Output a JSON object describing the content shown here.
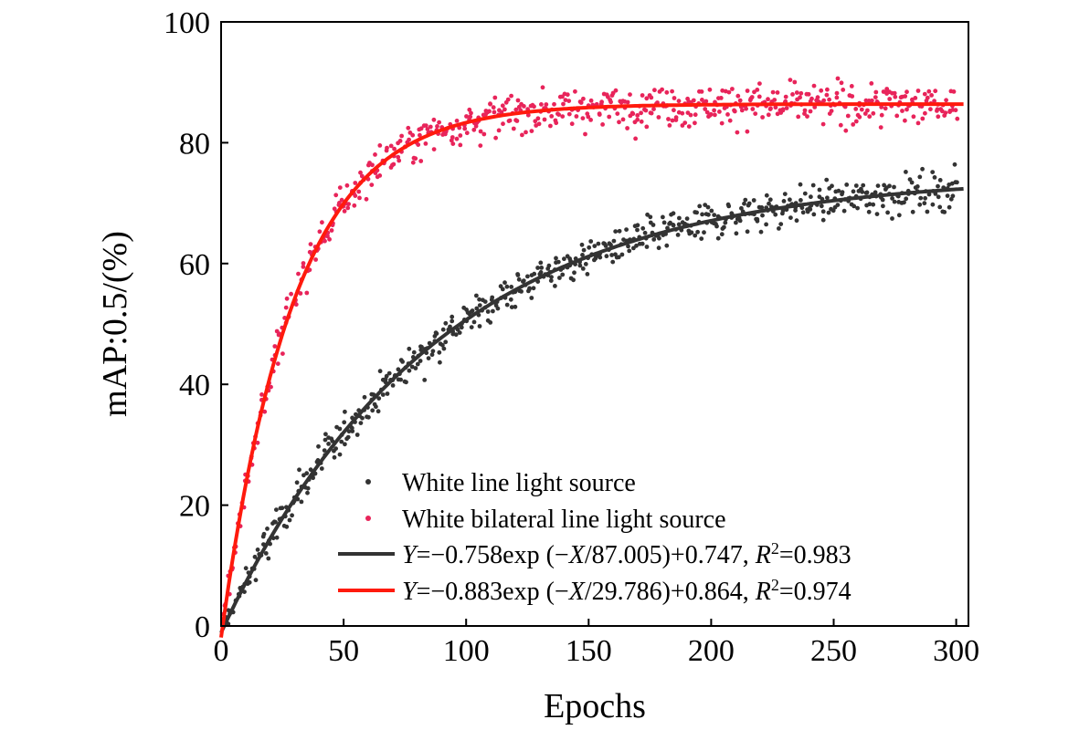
{
  "chart_data": {
    "type": "scatter",
    "xlabel": "Epochs",
    "ylabel": "mAP:0.5/(%)",
    "xlim": [
      0,
      305
    ],
    "ylim": [
      0,
      100
    ],
    "xticks": [
      "0",
      "50",
      "100",
      "150",
      "200",
      "250",
      "300"
    ],
    "yticks": [
      "0",
      "20",
      "40",
      "60",
      "80",
      "100"
    ],
    "grid": false,
    "legend_position": "bottom-right",
    "series": [
      {
        "name": "White line light source",
        "kind": "scatter",
        "color": "#333333",
        "fit": {
          "a": 75.8,
          "b": 87.005,
          "c": 74.7
        },
        "noise": 2.2
      },
      {
        "name": "White bilateral line light source",
        "kind": "scatter",
        "color": "#e8245a",
        "fit": {
          "a": 88.3,
          "b": 29.786,
          "c": 86.4
        },
        "noise": 2.4
      },
      {
        "name": "Y=−0.758exp (−X/87.005)+0.747, R2=0.983",
        "kind": "line",
        "color": "#333333",
        "a": 75.8,
        "b": 87.005,
        "c": 74.7
      },
      {
        "name": "Y=−0.883exp (−X/29.786)+0.864, R2=0.974",
        "kind": "line",
        "color": "#ff1a0d",
        "a": 88.3,
        "b": 29.786,
        "c": 86.4
      }
    ],
    "legend": {
      "dark_points": "White line light source",
      "red_points": "White bilateral line light source",
      "dark_fit": {
        "pre": "Y",
        "mid1": "=−0.758exp (−",
        "x": "X",
        "mid2": "/87.005)+0.747, ",
        "r": "R",
        "sup": "2",
        "post": "=0.983"
      },
      "red_fit": {
        "pre": "Y",
        "mid1": "=−0.883exp (−",
        "x": "X",
        "mid2": "/29.786)+0.864, ",
        "r": "R",
        "sup": "2",
        "post": "=0.974"
      }
    }
  }
}
